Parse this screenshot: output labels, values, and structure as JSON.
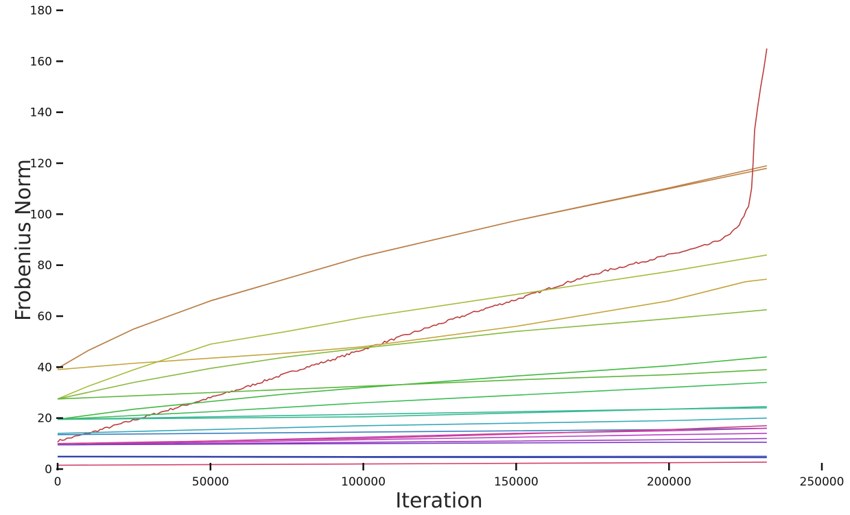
{
  "chart_data": {
    "type": "line",
    "title": "",
    "xlabel": "Iteration",
    "ylabel": "Frobenius Norm",
    "xlim": [
      0,
      250000
    ],
    "ylim": [
      0,
      180
    ],
    "xticks": [
      0,
      50000,
      100000,
      150000,
      200000,
      250000
    ],
    "yticks": [
      0,
      20,
      40,
      60,
      80,
      100,
      120,
      140,
      160,
      180
    ],
    "grid": false,
    "legend": "none",
    "series": [
      {
        "color": "#c2803f",
        "points": [
          [
            0,
            39.5
          ],
          [
            10000,
            46.5
          ],
          [
            25000,
            55
          ],
          [
            50000,
            66
          ],
          [
            100000,
            83.5
          ],
          [
            150000,
            97.5
          ],
          [
            200000,
            110
          ],
          [
            232000,
            118
          ]
        ]
      },
      {
        "color": "#b9804a",
        "points": [
          [
            0,
            39.5
          ],
          [
            10000,
            46.5
          ],
          [
            25000,
            55
          ],
          [
            50000,
            66
          ],
          [
            100000,
            83.5
          ],
          [
            150000,
            97.5
          ],
          [
            200000,
            110.3
          ],
          [
            232000,
            119
          ]
        ]
      },
      {
        "color": "#bb3b3b",
        "noisy": true,
        "points": [
          [
            0,
            11
          ],
          [
            10000,
            14
          ],
          [
            20000,
            17.5
          ],
          [
            30000,
            21
          ],
          [
            40000,
            24.5
          ],
          [
            50000,
            28
          ],
          [
            60000,
            31.5
          ],
          [
            70000,
            35.5
          ],
          [
            80000,
            39.5
          ],
          [
            90000,
            43
          ],
          [
            100000,
            47
          ],
          [
            110000,
            51
          ],
          [
            120000,
            55
          ],
          [
            130000,
            59
          ],
          [
            140000,
            63
          ],
          [
            150000,
            66.5
          ],
          [
            160000,
            70.5
          ],
          [
            170000,
            74.5
          ],
          [
            180000,
            78
          ],
          [
            190000,
            81
          ],
          [
            200000,
            84
          ],
          [
            210000,
            87
          ],
          [
            215000,
            89
          ],
          [
            220000,
            92
          ],
          [
            223000,
            96
          ],
          [
            226000,
            103
          ],
          [
            227000,
            110
          ],
          [
            227500,
            120
          ],
          [
            228000,
            133
          ],
          [
            229000,
            142
          ],
          [
            230000,
            150
          ],
          [
            231000,
            157
          ],
          [
            232000,
            165
          ]
        ]
      },
      {
        "color": "#a6bb3d",
        "points": [
          [
            0,
            27.5
          ],
          [
            10000,
            32.5
          ],
          [
            25000,
            39
          ],
          [
            50000,
            49
          ],
          [
            75000,
            54
          ],
          [
            100000,
            59.5
          ],
          [
            150000,
            68.5
          ],
          [
            200000,
            77.5
          ],
          [
            232000,
            84
          ]
        ]
      },
      {
        "color": "#c4a43a",
        "points": [
          [
            0,
            39
          ],
          [
            25000,
            41.5
          ],
          [
            50000,
            43.5
          ],
          [
            75000,
            45.5
          ],
          [
            100000,
            48
          ],
          [
            150000,
            56
          ],
          [
            200000,
            66
          ],
          [
            225000,
            73.5
          ],
          [
            232000,
            74.5
          ]
        ]
      },
      {
        "color": "#86b93c",
        "points": [
          [
            0,
            27.5
          ],
          [
            25000,
            34
          ],
          [
            50000,
            39.5
          ],
          [
            75000,
            44
          ],
          [
            100000,
            47.5
          ],
          [
            150000,
            54
          ],
          [
            200000,
            59
          ],
          [
            232000,
            62.5
          ]
        ]
      },
      {
        "color": "#3fb83f",
        "points": [
          [
            0,
            19.5
          ],
          [
            25000,
            23.5
          ],
          [
            50000,
            26.5
          ],
          [
            75000,
            29.5
          ],
          [
            100000,
            32
          ],
          [
            150000,
            36.5
          ],
          [
            200000,
            40.5
          ],
          [
            232000,
            44
          ]
        ]
      },
      {
        "color": "#5ab53a",
        "points": [
          [
            0,
            27.5
          ],
          [
            50000,
            30
          ],
          [
            100000,
            32.5
          ],
          [
            150000,
            35
          ],
          [
            200000,
            37
          ],
          [
            232000,
            39
          ]
        ]
      },
      {
        "color": "#3bbb56",
        "points": [
          [
            0,
            19.5
          ],
          [
            50000,
            22.5
          ],
          [
            100000,
            26
          ],
          [
            150000,
            29
          ],
          [
            200000,
            32
          ],
          [
            232000,
            34
          ]
        ]
      },
      {
        "color": "#35b89a",
        "points": [
          [
            0,
            19.5
          ],
          [
            50000,
            20.5
          ],
          [
            100000,
            21.5
          ],
          [
            150000,
            22.5
          ],
          [
            200000,
            23.5
          ],
          [
            232000,
            24
          ]
        ]
      },
      {
        "color": "#3ab890",
        "points": [
          [
            0,
            19.5
          ],
          [
            100000,
            20.5
          ],
          [
            150000,
            22
          ],
          [
            200000,
            23.5
          ],
          [
            232000,
            24.5
          ]
        ]
      },
      {
        "color": "#35aab8",
        "points": [
          [
            0,
            14
          ],
          [
            50000,
            15.5
          ],
          [
            100000,
            17
          ],
          [
            150000,
            18
          ],
          [
            200000,
            19
          ],
          [
            232000,
            20
          ]
        ]
      },
      {
        "color": "#3a7fc0",
        "points": [
          [
            0,
            13.5
          ],
          [
            50000,
            14
          ],
          [
            100000,
            14.5
          ],
          [
            150000,
            15
          ],
          [
            200000,
            15.5
          ],
          [
            232000,
            16
          ]
        ]
      },
      {
        "color": "#c23ab8",
        "points": [
          [
            0,
            9.5
          ],
          [
            50000,
            11
          ],
          [
            100000,
            12.5
          ],
          [
            150000,
            14
          ],
          [
            200000,
            15
          ],
          [
            232000,
            16
          ]
        ]
      },
      {
        "color": "#d03f8a",
        "points": [
          [
            0,
            10
          ],
          [
            100000,
            12
          ],
          [
            200000,
            15.5
          ],
          [
            232000,
            17
          ]
        ]
      },
      {
        "color": "#b93fc4",
        "points": [
          [
            0,
            9.5
          ],
          [
            50000,
            10.5
          ],
          [
            100000,
            11.5
          ],
          [
            150000,
            12.5
          ],
          [
            200000,
            13.5
          ],
          [
            232000,
            14
          ]
        ]
      },
      {
        "color": "#a13ac4",
        "points": [
          [
            0,
            9.5
          ],
          [
            100000,
            10.5
          ],
          [
            200000,
            11.5
          ],
          [
            232000,
            12
          ]
        ]
      },
      {
        "color": "#7a3cc0",
        "points": [
          [
            0,
            9.5
          ],
          [
            100000,
            10
          ],
          [
            200000,
            10.5
          ],
          [
            232000,
            10.5
          ]
        ]
      },
      {
        "color": "#3a4fc2",
        "points": [
          [
            0,
            5
          ],
          [
            100000,
            4.9
          ],
          [
            232000,
            5
          ]
        ]
      },
      {
        "color": "#2e3f9e",
        "points": [
          [
            0,
            4.8
          ],
          [
            100000,
            4.6
          ],
          [
            232000,
            4.5
          ]
        ]
      },
      {
        "color": "#d43f6a",
        "points": [
          [
            0,
            1.5
          ],
          [
            100000,
            2
          ],
          [
            200000,
            2.5
          ],
          [
            232000,
            2.7
          ]
        ]
      }
    ]
  }
}
